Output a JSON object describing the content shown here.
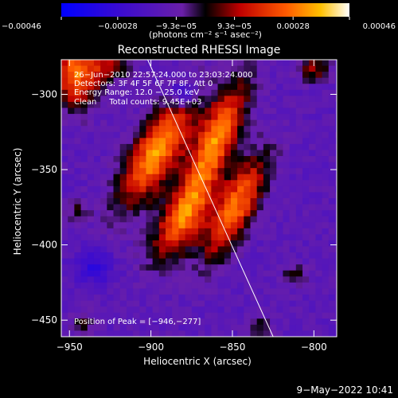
{
  "chart_data": {
    "type": "heatmap",
    "title": "Reconstructed RHESSI Image",
    "xlabel": "Heliocentric X (arcsec)",
    "ylabel": "Heliocentric Y (arcsec)",
    "xlim": [
      -955,
      -786
    ],
    "ylim": [
      -461,
      -277
    ],
    "x_ticks": [
      -950,
      -900,
      -850,
      -800
    ],
    "x_tick_labels": [
      "−950",
      "−900",
      "−850",
      "−800"
    ],
    "y_ticks": [
      -300,
      -350,
      -400,
      -450
    ],
    "y_tick_labels": [
      "−300",
      "−350",
      "−400",
      "−450"
    ],
    "colorbar": {
      "range": [
        -0.00046,
        0.00046
      ],
      "ticks": [
        -0.00046,
        -0.00028,
        -9.3e-05,
        9.3e-05,
        0.00028,
        0.00046
      ],
      "tick_labels": [
        "−0.00046",
        "−0.00028",
        "−9.3e−05",
        "9.3e−05",
        "0.00028",
        "0.00046"
      ],
      "units": "(photons cm⁻² s⁻¹ asec⁻²)"
    },
    "annotations": [
      "26−Jun−2010 22:57:24.000 to 23:03:24.000",
      "Detectors: 3F 4F 5F 6F 7F 8F, Att 0",
      "Energy Range: 12.0 − 25.0 keV",
      "Clean     Total counts: 9.45E+03"
    ],
    "peak_label": "Position of Peak = [−946,−277]",
    "peak": [
      -946,
      -277
    ],
    "limb_line": [
      [
        -902,
        -277
      ],
      [
        -825,
        -461
      ]
    ],
    "sources": [
      {
        "x": -896,
        "y": -338,
        "sx": 10,
        "sy": 28,
        "angle_deg": -28,
        "amp": 1.0
      },
      {
        "x": -880,
        "y": -382,
        "sx": 9,
        "sy": 22,
        "angle_deg": -28,
        "amp": 0.85
      },
      {
        "x": -860,
        "y": -330,
        "sx": 8,
        "sy": 28,
        "angle_deg": -22,
        "amp": 0.95
      },
      {
        "x": -848,
        "y": -375,
        "sx": 8,
        "sy": 26,
        "angle_deg": -25,
        "amp": 0.9
      },
      {
        "x": -946,
        "y": -286,
        "sx": 10,
        "sy": 16,
        "angle_deg": 0,
        "amp": 0.9
      },
      {
        "x": -925,
        "y": -282,
        "sx": 8,
        "sy": 7,
        "angle_deg": 0,
        "amp": 0.45
      },
      {
        "x": -800,
        "y": -283,
        "sx": 7,
        "sy": 6,
        "angle_deg": 0,
        "amp": 0.45
      },
      {
        "x": -880,
        "y": -300,
        "sx": 6,
        "sy": 6,
        "angle_deg": 0,
        "amp": -0.55
      },
      {
        "x": -935,
        "y": -415,
        "sx": 8,
        "sy": 8,
        "angle_deg": 0,
        "amp": -0.35
      },
      {
        "x": -945,
        "y": -378,
        "sx": 5,
        "sy": 5,
        "angle_deg": 0,
        "amp": 0.3
      },
      {
        "x": -942,
        "y": -452,
        "sx": 5,
        "sy": 5,
        "angle_deg": 0,
        "amp": 0.35
      },
      {
        "x": -812,
        "y": -420,
        "sx": 5,
        "sy": 5,
        "angle_deg": 0,
        "amp": 0.3
      },
      {
        "x": -832,
        "y": -455,
        "sx": 5,
        "sy": 5,
        "angle_deg": 0,
        "amp": 0.3
      }
    ],
    "background_level": -0.3,
    "grid": false
  },
  "timestamp": "9−May−2022 10:41"
}
